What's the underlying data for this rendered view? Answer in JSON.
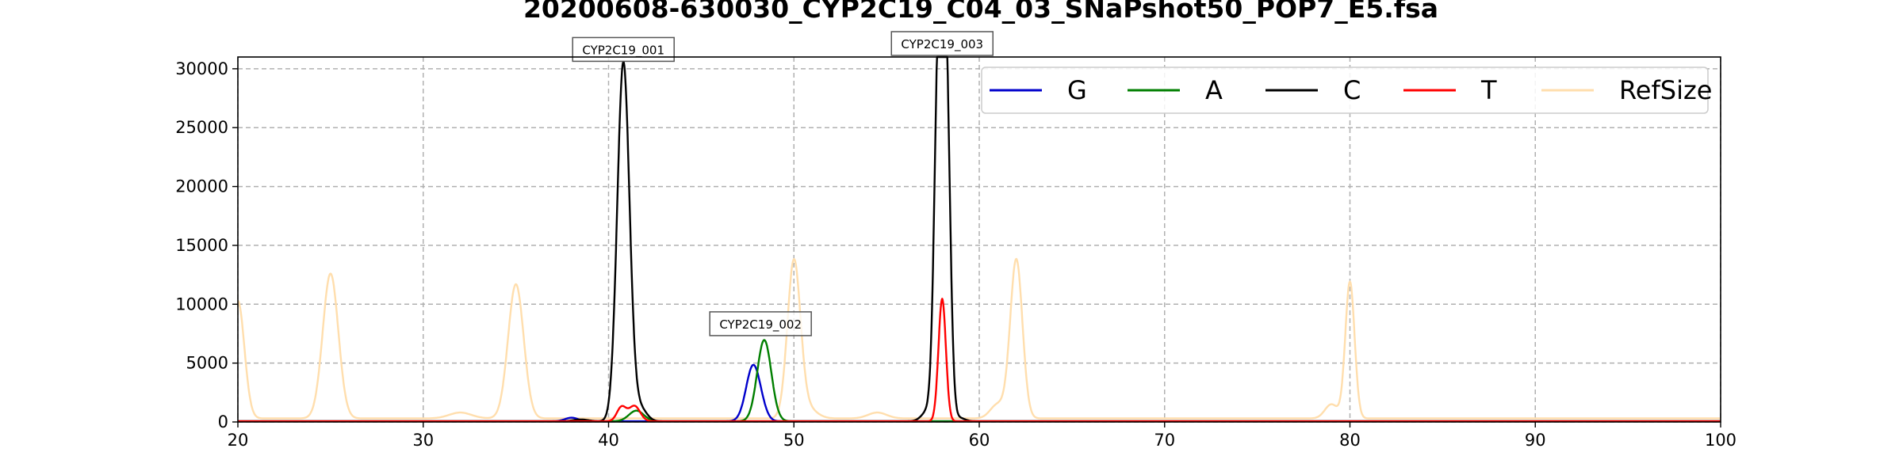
{
  "chart_data": {
    "type": "line",
    "title": "20200608-630030_CYP2C19_C04_03_SNaPshot50_POP7_E5.fsa",
    "xlabel": "",
    "ylabel": "",
    "xlim": [
      20,
      100
    ],
    "ylim": [
      0,
      31000
    ],
    "x_ticks": [
      20,
      30,
      40,
      50,
      60,
      70,
      80,
      90,
      100
    ],
    "y_ticks": [
      0,
      5000,
      10000,
      15000,
      20000,
      25000,
      30000
    ],
    "grid": true,
    "grid_style": "dashed",
    "legend_position": "top-right",
    "baseline": 150,
    "series": [
      {
        "name": "G",
        "color": "#0000cc",
        "peaks": [
          {
            "x": 38.0,
            "height": 300,
            "width": 0.35
          },
          {
            "x": 47.8,
            "height": 4700,
            "width": 0.38
          },
          {
            "x": 48.3,
            "height": 350,
            "width": 0.3
          }
        ]
      },
      {
        "name": "A",
        "color": "#007f00",
        "peaks": [
          {
            "x": 41.5,
            "height": 900,
            "width": 0.4
          },
          {
            "x": 48.4,
            "height": 6900,
            "width": 0.38
          }
        ]
      },
      {
        "name": "C",
        "color": "#000000",
        "peaks": [
          {
            "x": 38.5,
            "height": 150,
            "width": 0.4
          },
          {
            "x": 40.8,
            "height": 30500,
            "width": 0.33
          },
          {
            "x": 41.7,
            "height": 1100,
            "width": 0.35
          },
          {
            "x": 57.3,
            "height": 1000,
            "width": 0.35
          },
          {
            "x": 57.8,
            "height": 30000,
            "width": 0.22
          },
          {
            "x": 58.2,
            "height": 30000,
            "width": 0.22
          },
          {
            "x": 58.9,
            "height": 300,
            "width": 0.3
          }
        ]
      },
      {
        "name": "T",
        "color": "#ff0000",
        "peaks": [
          {
            "x": 40.7,
            "height": 1200,
            "width": 0.25
          },
          {
            "x": 41.4,
            "height": 1300,
            "width": 0.3
          },
          {
            "x": 58.0,
            "height": 10400,
            "width": 0.2
          }
        ]
      },
      {
        "name": "RefSize",
        "color": "#ffdead",
        "peaks": [
          {
            "x": 20.0,
            "height": 10000,
            "width": 0.35
          },
          {
            "x": 25.0,
            "height": 12300,
            "width": 0.42
          },
          {
            "x": 32.0,
            "height": 500,
            "width": 0.6
          },
          {
            "x": 35.0,
            "height": 11400,
            "width": 0.42
          },
          {
            "x": 50.0,
            "height": 13200,
            "width": 0.35
          },
          {
            "x": 50.7,
            "height": 900,
            "width": 0.5
          },
          {
            "x": 54.5,
            "height": 500,
            "width": 0.5
          },
          {
            "x": 61.0,
            "height": 1200,
            "width": 0.4
          },
          {
            "x": 62.0,
            "height": 13500,
            "width": 0.33
          },
          {
            "x": 79.0,
            "height": 1200,
            "width": 0.35
          },
          {
            "x": 80.0,
            "height": 11600,
            "width": 0.25
          }
        ]
      }
    ],
    "annotations": [
      {
        "text": "CYP2C19_001",
        "x": 40.8,
        "y": 30500
      },
      {
        "text": "CYP2C19_002",
        "x": 48.2,
        "y": 7200
      },
      {
        "text": "CYP2C19_003",
        "x": 58.0,
        "y": 31000
      }
    ]
  }
}
